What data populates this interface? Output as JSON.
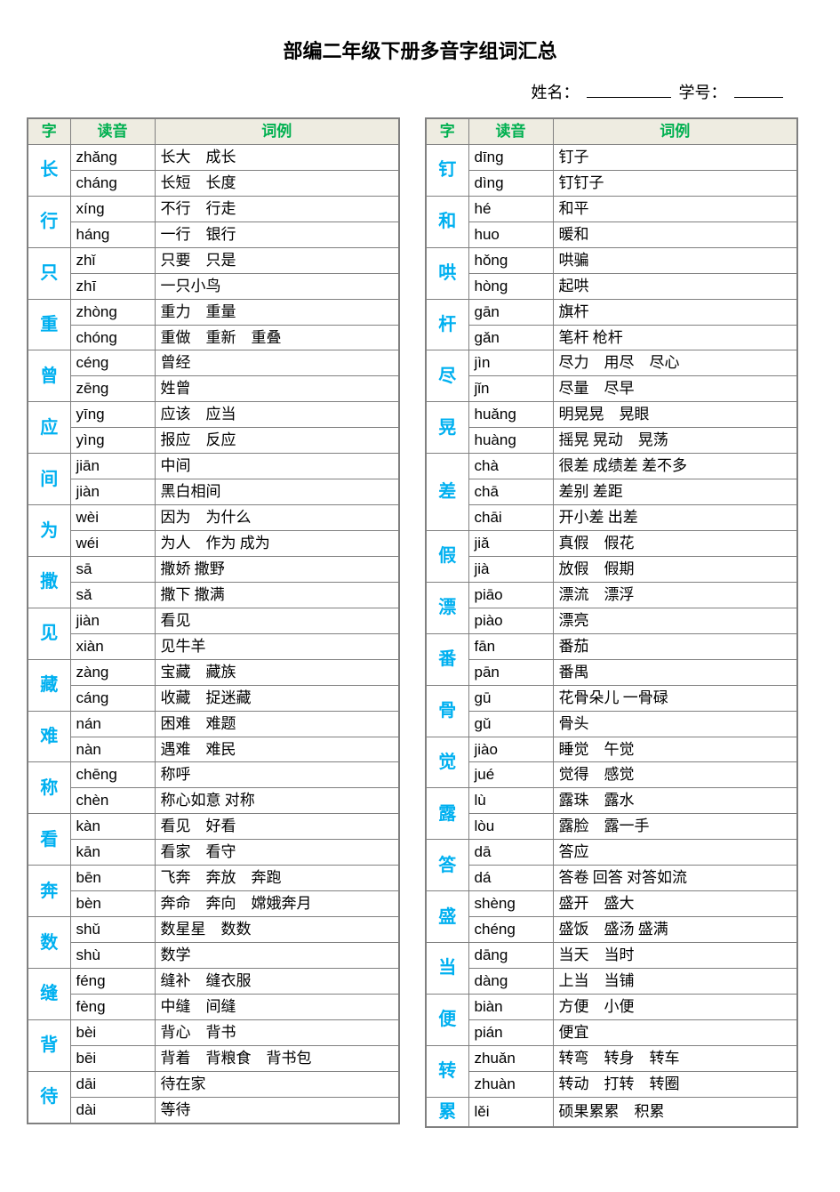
{
  "title": "部编二年级下册多音字组词汇总",
  "labels": {
    "name": "姓名：",
    "id": "学号：",
    "h_char": "字",
    "h_pinyin": "读音",
    "h_example": "词例"
  },
  "colors": {
    "header_bg": "#eeece1",
    "header_fg": "#00b050",
    "char_fg": "#00b0f0",
    "border": "#808080",
    "page_bg": "#ffffff",
    "text": "#000000"
  },
  "left": [
    {
      "char": "长",
      "rows": [
        [
          "zhǎng",
          "长大　成长"
        ],
        [
          "cháng",
          "长短　长度"
        ]
      ]
    },
    {
      "char": "行",
      "rows": [
        [
          "xíng",
          "不行　行走"
        ],
        [
          "háng",
          "一行　银行"
        ]
      ]
    },
    {
      "char": "只",
      "rows": [
        [
          "zhǐ",
          "只要　只是"
        ],
        [
          "zhī",
          "一只小鸟"
        ]
      ]
    },
    {
      "char": "重",
      "rows": [
        [
          "zhòng",
          "重力　重量"
        ],
        [
          "chóng",
          "重做　重新　重叠"
        ]
      ]
    },
    {
      "char": "曾",
      "rows": [
        [
          "céng",
          "曾经"
        ],
        [
          "zēng",
          "姓曾"
        ]
      ]
    },
    {
      "char": "应",
      "rows": [
        [
          "yīng",
          "应该　应当"
        ],
        [
          "yìng",
          "报应　反应"
        ]
      ]
    },
    {
      "char": "间",
      "rows": [
        [
          "jiān",
          "中间"
        ],
        [
          "jiàn",
          "黑白相间"
        ]
      ]
    },
    {
      "char": "为",
      "rows": [
        [
          "wèi",
          "因为　为什么"
        ],
        [
          "wéi",
          "为人　作为  成为"
        ]
      ]
    },
    {
      "char": "撒",
      "rows": [
        [
          "sā",
          "撒娇  撒野"
        ],
        [
          "sǎ",
          "撒下  撒满"
        ]
      ]
    },
    {
      "char": "见",
      "rows": [
        [
          "jiàn",
          "看见"
        ],
        [
          "xiàn",
          "见牛羊"
        ]
      ]
    },
    {
      "char": "藏",
      "rows": [
        [
          "zàng",
          "宝藏　藏族"
        ],
        [
          "cáng",
          "收藏　捉迷藏"
        ]
      ]
    },
    {
      "char": "难",
      "rows": [
        [
          "nán",
          "困难　难题"
        ],
        [
          "nàn",
          "遇难　难民"
        ]
      ]
    },
    {
      "char": "称",
      "rows": [
        [
          "chēng",
          "称呼"
        ],
        [
          "chèn",
          "称心如意  对称"
        ]
      ]
    },
    {
      "char": "看",
      "rows": [
        [
          "kàn",
          "看见　好看"
        ],
        [
          "kān",
          "看家　看守"
        ]
      ]
    },
    {
      "char": "奔",
      "rows": [
        [
          "bēn",
          "飞奔　奔放　奔跑"
        ],
        [
          "bèn",
          "奔命　奔向　嫦娥奔月"
        ]
      ]
    },
    {
      "char": "数",
      "rows": [
        [
          "shǔ",
          "数星星　数数"
        ],
        [
          "shù",
          "数学"
        ]
      ]
    },
    {
      "char": "缝",
      "rows": [
        [
          "féng",
          "缝补　缝衣服"
        ],
        [
          "fèng",
          "中缝　间缝"
        ]
      ]
    },
    {
      "char": "背",
      "rows": [
        [
          "bèi",
          "背心　背书"
        ],
        [
          "bēi",
          "背着　背粮食　背书包"
        ]
      ]
    },
    {
      "char": "待",
      "rows": [
        [
          "dāi",
          "待在家"
        ],
        [
          "dài",
          "等待"
        ]
      ]
    }
  ],
  "right": [
    {
      "char": "钉",
      "rows": [
        [
          "dīng",
          "钉子"
        ],
        [
          "dìng",
          "钉钉子"
        ]
      ]
    },
    {
      "char": "和",
      "rows": [
        [
          "hé",
          "和平"
        ],
        [
          "huo",
          "暖和"
        ]
      ]
    },
    {
      "char": "哄",
      "rows": [
        [
          "hǒng",
          "哄骗"
        ],
        [
          "hòng",
          "起哄"
        ]
      ]
    },
    {
      "char": "杆",
      "rows": [
        [
          "gān",
          "旗杆"
        ],
        [
          "gǎn",
          "笔杆  枪杆"
        ]
      ]
    },
    {
      "char": "尽",
      "rows": [
        [
          "jìn",
          "尽力　用尽　尽心"
        ],
        [
          "jǐn",
          "尽量　尽早"
        ]
      ]
    },
    {
      "char": "晃",
      "rows": [
        [
          "huǎng",
          "明晃晃　晃眼"
        ],
        [
          "huàng",
          "摇晃  晃动　晃荡"
        ]
      ]
    },
    {
      "char": "差",
      "rows": [
        [
          "chà",
          "很差  成绩差  差不多"
        ],
        [
          "chā",
          "差别  差距"
        ],
        [
          "chāi",
          "开小差  出差"
        ]
      ]
    },
    {
      "char": "假",
      "rows": [
        [
          "jiǎ",
          "真假　假花"
        ],
        [
          "jià",
          "放假　假期"
        ]
      ]
    },
    {
      "char": "漂",
      "rows": [
        [
          "piāo",
          "漂流　漂浮"
        ],
        [
          "piào",
          "漂亮"
        ]
      ]
    },
    {
      "char": "番",
      "rows": [
        [
          "fān",
          "番茄"
        ],
        [
          "pān",
          "番禺"
        ]
      ]
    },
    {
      "char": "骨",
      "rows": [
        [
          "gū",
          "花骨朵儿  一骨碌"
        ],
        [
          "gǔ",
          "骨头"
        ]
      ]
    },
    {
      "char": "觉",
      "rows": [
        [
          "jiào",
          "睡觉　午觉"
        ],
        [
          "jué",
          "觉得　感觉"
        ]
      ]
    },
    {
      "char": "露",
      "rows": [
        [
          "lù",
          "露珠　露水"
        ],
        [
          "lòu",
          "露脸　露一手"
        ]
      ]
    },
    {
      "char": "答",
      "rows": [
        [
          "dā",
          "答应"
        ],
        [
          "dá",
          "答卷  回答  对答如流"
        ]
      ]
    },
    {
      "char": "盛",
      "rows": [
        [
          "shèng",
          "盛开　盛大"
        ],
        [
          "chéng",
          "盛饭　盛汤  盛满"
        ]
      ]
    },
    {
      "char": "当",
      "rows": [
        [
          "dāng",
          "当天　当时"
        ],
        [
          "dàng",
          "上当　当铺"
        ]
      ]
    },
    {
      "char": "便",
      "rows": [
        [
          "biàn",
          "方便　小便"
        ],
        [
          "pián",
          "便宜"
        ]
      ]
    },
    {
      "char": "转",
      "rows": [
        [
          "zhuǎn",
          "转弯　转身　转车"
        ],
        [
          "zhuàn",
          "转动　打转　转圈"
        ]
      ]
    },
    {
      "char": "累",
      "rows": [
        [
          "lěi",
          "硕果累累　积累"
        ]
      ]
    }
  ]
}
